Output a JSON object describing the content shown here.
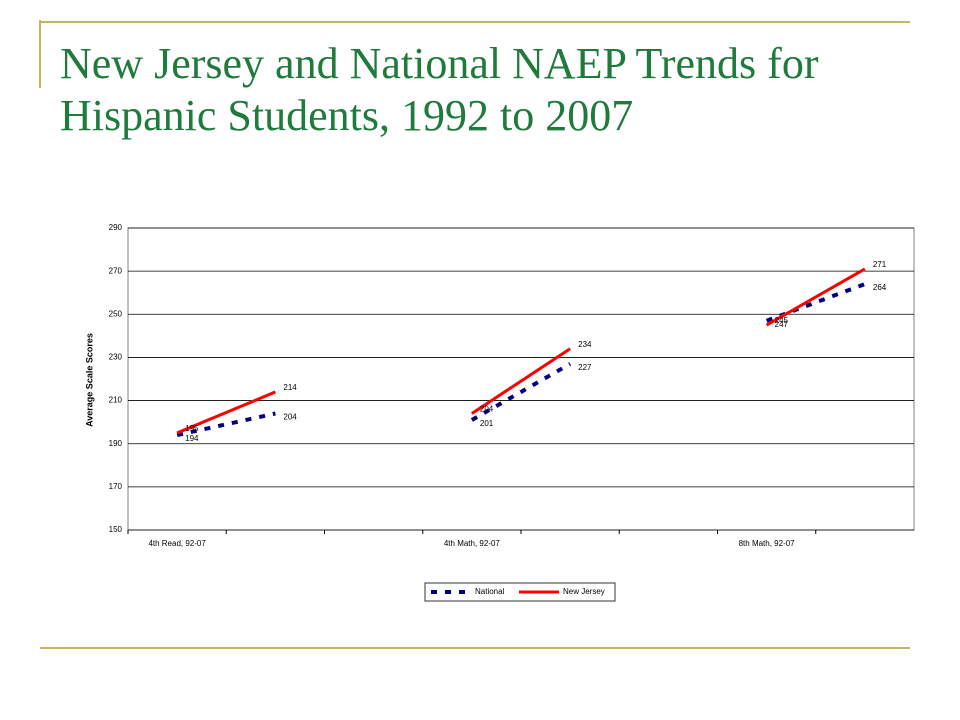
{
  "chart_data": {
    "type": "line",
    "title": "New Jersey and National NAEP Trends for Hispanic Students, 1992 to 2007",
    "y_label": "Average Scale Scores",
    "categories": [
      "4th Read, 92-07",
      null,
      null,
      "4th Math, 92-07",
      null,
      null,
      "8th Math, 92-07",
      null
    ],
    "series": [
      {
        "name": "National",
        "color": "#000080",
        "dashed": true,
        "values": [
          194,
          204,
          null,
          201,
          227,
          null,
          247,
          264
        ]
      },
      {
        "name": "New Jersey",
        "color": "#ff0000",
        "dashed": false,
        "values": [
          195,
          214,
          null,
          204,
          234,
          null,
          245,
          271
        ]
      }
    ],
    "ylim": [
      150,
      290
    ],
    "yticks": [
      150,
      170,
      190,
      210,
      230,
      250,
      270,
      290
    ],
    "grid": true,
    "legend": "bottom"
  }
}
